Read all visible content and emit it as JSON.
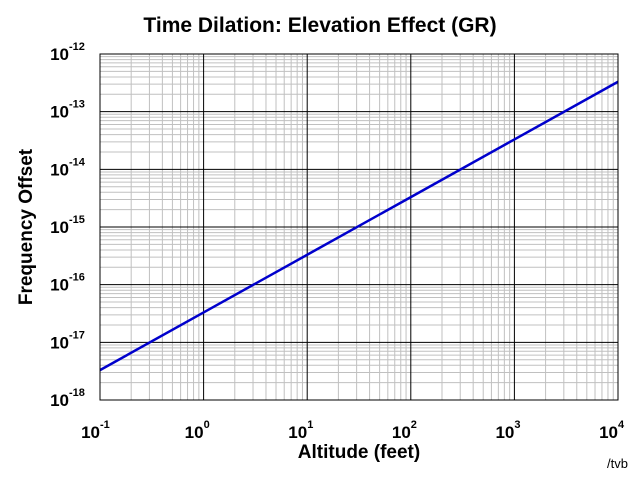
{
  "title": "Time Dilation: Elevation Effect (GR)",
  "credit": "/tvb",
  "chart_data": {
    "type": "line",
    "title": "Time Dilation: Elevation Effect (GR)",
    "xlabel": "Altitude (feet)",
    "ylabel": "Frequency Offset",
    "x_scale": "log",
    "y_scale": "log",
    "xlim": [
      0.1,
      10000
    ],
    "ylim": [
      1e-18,
      1e-12
    ],
    "grid": true,
    "x_ticks": [
      {
        "base": "10",
        "exp": "-1",
        "value": 0.1
      },
      {
        "base": "10",
        "exp": "0",
        "value": 1
      },
      {
        "base": "10",
        "exp": "1",
        "value": 10
      },
      {
        "base": "10",
        "exp": "2",
        "value": 100
      },
      {
        "base": "10",
        "exp": "3",
        "value": 1000
      },
      {
        "base": "10",
        "exp": "4",
        "value": 10000
      }
    ],
    "y_ticks": [
      {
        "base": "10",
        "exp": "-18",
        "value": 1e-18
      },
      {
        "base": "10",
        "exp": "-17",
        "value": 1e-17
      },
      {
        "base": "10",
        "exp": "-16",
        "value": 1e-16
      },
      {
        "base": "10",
        "exp": "-15",
        "value": 1e-15
      },
      {
        "base": "10",
        "exp": "-14",
        "value": 1e-14
      },
      {
        "base": "10",
        "exp": "-13",
        "value": 1e-13
      },
      {
        "base": "10",
        "exp": "-12",
        "value": 1e-12
      }
    ],
    "series": [
      {
        "color": "#0000cc",
        "x": [
          0.1,
          1,
          10,
          100,
          1000,
          10000
        ],
        "y": [
          3.3e-18,
          3.3e-17,
          3.3e-16,
          3.3e-15,
          3.3e-14,
          3.3e-13
        ]
      }
    ],
    "colors": {
      "grid_major": "#000000",
      "grid_minor": "#c0c0c0",
      "line": "#0000cc"
    }
  }
}
